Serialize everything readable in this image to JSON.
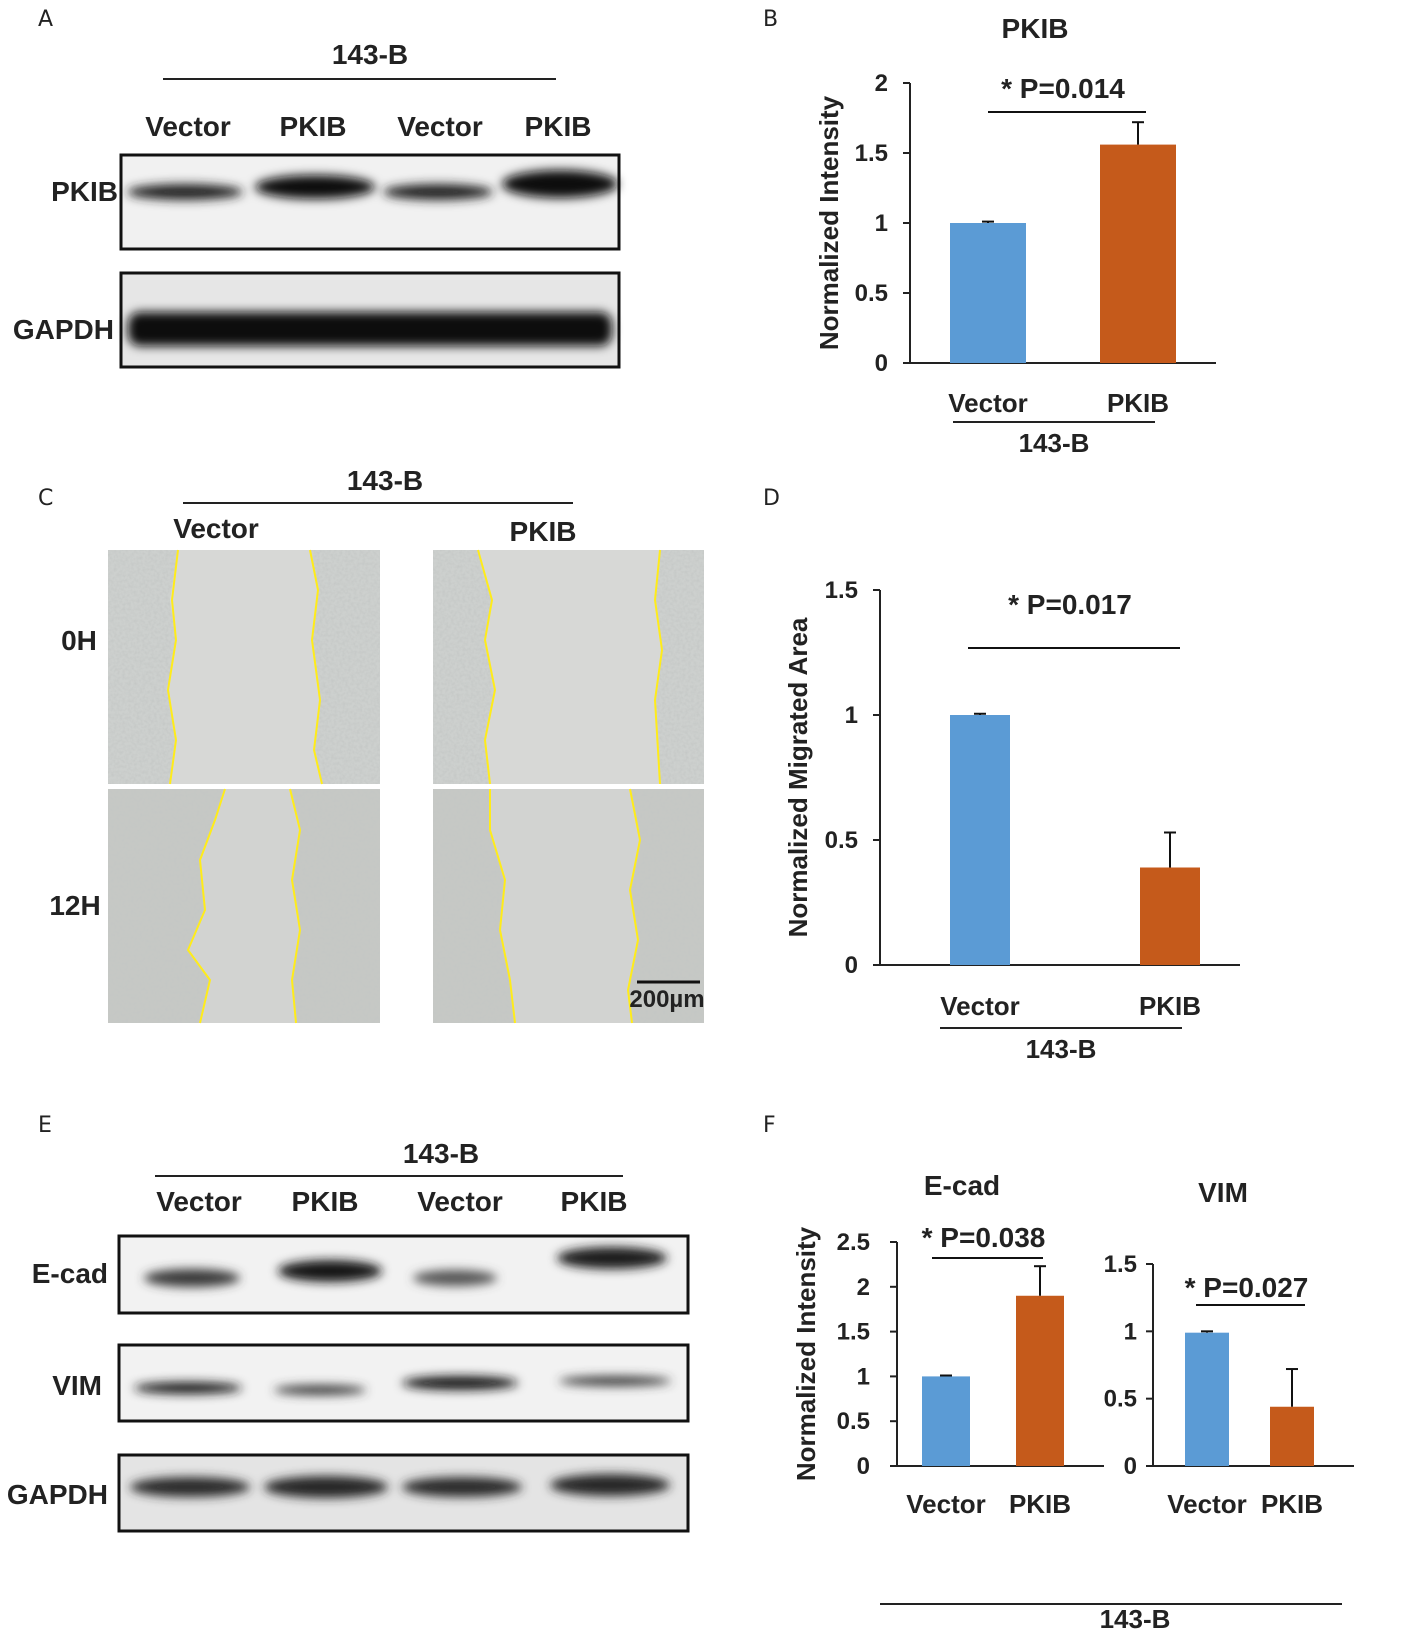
{
  "panels": {
    "A": {
      "letter": "A",
      "group": "143-B",
      "lanes": [
        "Vector",
        "PKIB",
        "Vector",
        "PKIB"
      ],
      "rows": [
        "PKIB",
        "GAPDH"
      ]
    },
    "C": {
      "letter": "C",
      "group": "143-B",
      "columns": [
        "Vector",
        "PKIB"
      ],
      "rows": [
        "0H",
        "12H"
      ],
      "scale_bar": "200µm"
    },
    "E": {
      "letter": "E",
      "group": "143-B",
      "lanes": [
        "Vector",
        "PKIB",
        "Vector",
        "PKIB"
      ],
      "rows": [
        "E-cad",
        "VIM",
        "GAPDH"
      ]
    },
    "B": {
      "letter": "B"
    },
    "D": {
      "letter": "D"
    },
    "F": {
      "letter": "F"
    }
  },
  "colors": {
    "vector": "#5b9bd5",
    "pkib": "#c55a1b",
    "wound_line": "#ffec1a"
  },
  "chart_data": [
    {
      "id": "B",
      "type": "bar",
      "title": "PKIB",
      "categories": [
        "Vector",
        "PKIB"
      ],
      "values": [
        1.0,
        1.56
      ],
      "errors": [
        0.01,
        0.16
      ],
      "ylabel": "Normalized Intensity",
      "xgroup": "143-B",
      "ylim": [
        0,
        2
      ],
      "yticks": [
        "0",
        "0.5",
        "1",
        "1.5",
        "2"
      ],
      "significance": "* P=0.014",
      "colors": [
        "#5b9bd5",
        "#c55a1b"
      ]
    },
    {
      "id": "D",
      "type": "bar",
      "title": "",
      "categories": [
        "Vector",
        "PKIB"
      ],
      "values": [
        1.0,
        0.39
      ],
      "errors": [
        0.005,
        0.14
      ],
      "ylabel": "Normalized Migrated Area",
      "xgroup": "143-B",
      "ylim": [
        0,
        1.5
      ],
      "yticks": [
        "0",
        "0.5",
        "1",
        "1.5"
      ],
      "significance": "* P=0.017",
      "colors": [
        "#5b9bd5",
        "#c55a1b"
      ]
    },
    {
      "id": "F1",
      "type": "bar",
      "title": "E-cad",
      "categories": [
        "Vector",
        "PKIB"
      ],
      "values": [
        1.0,
        1.9
      ],
      "errors": [
        0.01,
        0.33
      ],
      "ylabel": "Normalized Intensity",
      "xgroup": "143-B",
      "ylim": [
        0,
        2.5
      ],
      "yticks": [
        "0",
        "0.5",
        "1",
        "1.5",
        "2",
        "2.5"
      ],
      "significance": "* P=0.038",
      "colors": [
        "#5b9bd5",
        "#c55a1b"
      ]
    },
    {
      "id": "F2",
      "type": "bar",
      "title": "VIM",
      "categories": [
        "Vector",
        "PKIB"
      ],
      "values": [
        0.99,
        0.44
      ],
      "errors": [
        0.01,
        0.28
      ],
      "ylabel": "",
      "xgroup": "143-B",
      "ylim": [
        0,
        1.5
      ],
      "yticks": [
        "0",
        "0.5",
        "1",
        "1.5"
      ],
      "significance": "* P=0.027",
      "colors": [
        "#5b9bd5",
        "#c55a1b"
      ]
    }
  ]
}
